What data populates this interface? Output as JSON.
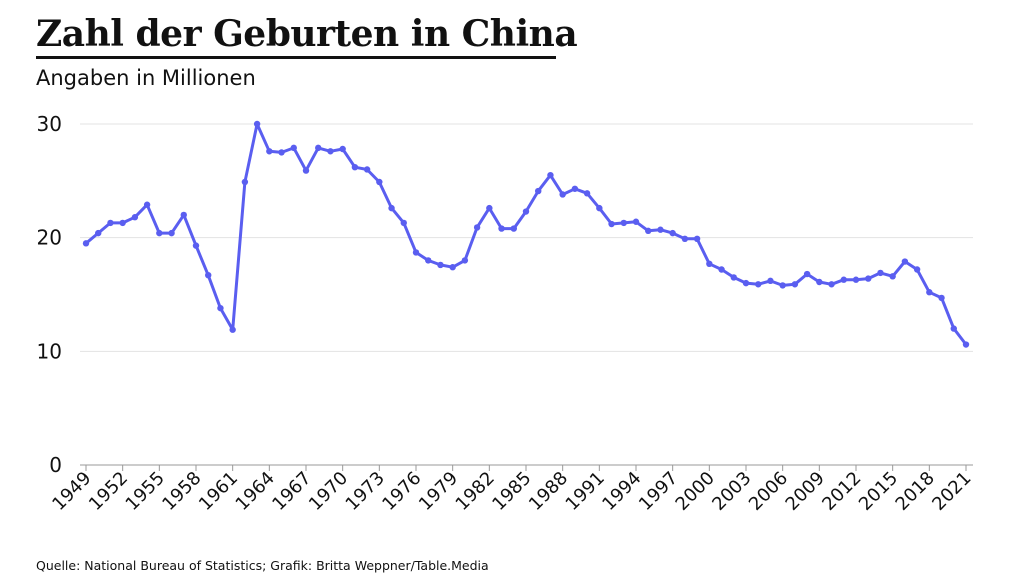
{
  "title": "Zahl der Geburten in China",
  "subtitle": "Angaben in Millionen",
  "source": "Quelle: National Bureau of Statistics; Grafik: Britta Weppner/Table.Media",
  "colors": {
    "line": "#5a5ef0",
    "grid": "#e3e3e3",
    "axis": "#999999"
  },
  "chart_data": {
    "type": "line",
    "x": [
      1949,
      1950,
      1951,
      1952,
      1953,
      1954,
      1955,
      1956,
      1957,
      1958,
      1959,
      1960,
      1961,
      1962,
      1963,
      1964,
      1965,
      1966,
      1967,
      1968,
      1969,
      1970,
      1971,
      1972,
      1973,
      1974,
      1975,
      1976,
      1977,
      1978,
      1979,
      1980,
      1981,
      1982,
      1983,
      1984,
      1985,
      1986,
      1987,
      1988,
      1989,
      1990,
      1991,
      1992,
      1993,
      1994,
      1995,
      1996,
      1997,
      1998,
      1999,
      2000,
      2001,
      2002,
      2003,
      2004,
      2005,
      2006,
      2007,
      2008,
      2009,
      2010,
      2011,
      2012,
      2013,
      2014,
      2015,
      2016,
      2017,
      2018,
      2019,
      2020,
      2021
    ],
    "values": [
      19.5,
      20.4,
      21.3,
      21.3,
      21.8,
      22.9,
      20.4,
      20.4,
      22.0,
      19.3,
      16.7,
      13.8,
      11.9,
      24.9,
      30.0,
      27.6,
      27.5,
      27.9,
      25.9,
      27.9,
      27.6,
      27.8,
      26.2,
      26.0,
      24.9,
      22.6,
      21.3,
      18.7,
      18.0,
      17.6,
      17.4,
      18.0,
      20.9,
      22.6,
      20.8,
      20.8,
      22.3,
      24.1,
      25.5,
      23.8,
      24.3,
      23.9,
      22.6,
      21.2,
      21.3,
      21.4,
      20.6,
      20.7,
      20.4,
      19.9,
      19.9,
      17.7,
      17.2,
      16.5,
      16.0,
      15.9,
      16.2,
      15.8,
      15.9,
      16.8,
      16.1,
      15.9,
      16.3,
      16.3,
      16.4,
      16.9,
      16.6,
      17.9,
      17.2,
      15.2,
      14.7,
      12.0,
      10.6
    ],
    "x_tick_labels": [
      "1949",
      "1952",
      "1955",
      "1958",
      "1961",
      "1964",
      "1967",
      "1970",
      "1973",
      "1976",
      "1979",
      "1982",
      "1985",
      "1988",
      "1991",
      "1994",
      "1997",
      "2000",
      "2003",
      "2006",
      "2009",
      "2012",
      "2015",
      "2018",
      "2021"
    ],
    "y_ticks": [
      0,
      10,
      20,
      30
    ],
    "xlim": [
      1949,
      2021
    ],
    "ylim": [
      0,
      30
    ],
    "grid": true,
    "xlabel": "",
    "ylabel": ""
  }
}
